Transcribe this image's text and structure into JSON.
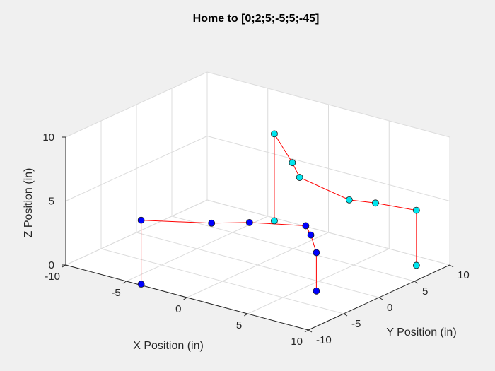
{
  "chart_data": {
    "type": "scatter3d",
    "title": "Home to [0;2;5;-5;5;-45]",
    "xlabel": "X Position (in)",
    "ylabel": "Y Position (in)",
    "zlabel": "Z Position (in)",
    "xlim": [
      -10,
      10
    ],
    "ylim": [
      -10,
      10
    ],
    "zlim": [
      0,
      10
    ],
    "xticks": [
      "-10",
      "-5",
      "0",
      "5",
      "10"
    ],
    "yticks": [
      "-10",
      "-5",
      "0",
      "5",
      "10"
    ],
    "zticks": [
      "0",
      "5",
      "10"
    ],
    "grid": true,
    "series": [
      {
        "color": "#0000ff",
        "links": [
          [
            [
              -3.9,
              -9.8,
              0.0
            ],
            [
              -3.9,
              -9.8,
              5.0
            ],
            [
              0.1,
              -6.7,
              5.0
            ],
            [
              2.0,
              -4.6,
              5.0
            ],
            [
              5.3,
              -2.3,
              5.0
            ],
            [
              5.6,
              -2.1,
              4.3
            ],
            [
              6.0,
              -2.0,
              3.0
            ],
            [
              6.0,
              -2.0,
              0.0
            ]
          ]
        ],
        "points": [
          [
            -3.9,
            -9.8,
            0.0
          ],
          [
            -3.9,
            -9.8,
            5.0
          ],
          [
            0.1,
            -6.7,
            5.0
          ],
          [
            2.0,
            -4.6,
            5.0
          ],
          [
            5.3,
            -2.3,
            5.0
          ],
          [
            5.6,
            -2.1,
            4.3
          ],
          [
            6.0,
            -2.0,
            3.0
          ],
          [
            6.0,
            -2.0,
            0.0
          ]
        ]
      },
      {
        "color": "#00e5ee",
        "links": [
          [
            [
              0.2,
              2.0,
              3.0
            ],
            [
              0.2,
              2.0,
              9.8
            ],
            [
              1.8,
              1.8,
              8.0
            ],
            [
              2.4,
              1.8,
              7.0
            ],
            [
              5.5,
              3.5,
              5.6
            ],
            [
              6.5,
              5.5,
              5.1
            ],
            [
              8.3,
              8.2,
              4.3
            ],
            [
              8.3,
              8.2,
              0.0
            ]
          ]
        ],
        "points": [
          [
            0.2,
            2.0,
            3.0
          ],
          [
            0.2,
            2.0,
            9.8
          ],
          [
            1.8,
            1.8,
            8.0
          ],
          [
            2.4,
            1.8,
            7.0
          ],
          [
            5.5,
            3.5,
            5.6
          ],
          [
            6.5,
            5.5,
            5.1
          ],
          [
            8.3,
            8.2,
            4.3
          ],
          [
            8.3,
            8.2,
            0.0
          ]
        ]
      }
    ]
  }
}
